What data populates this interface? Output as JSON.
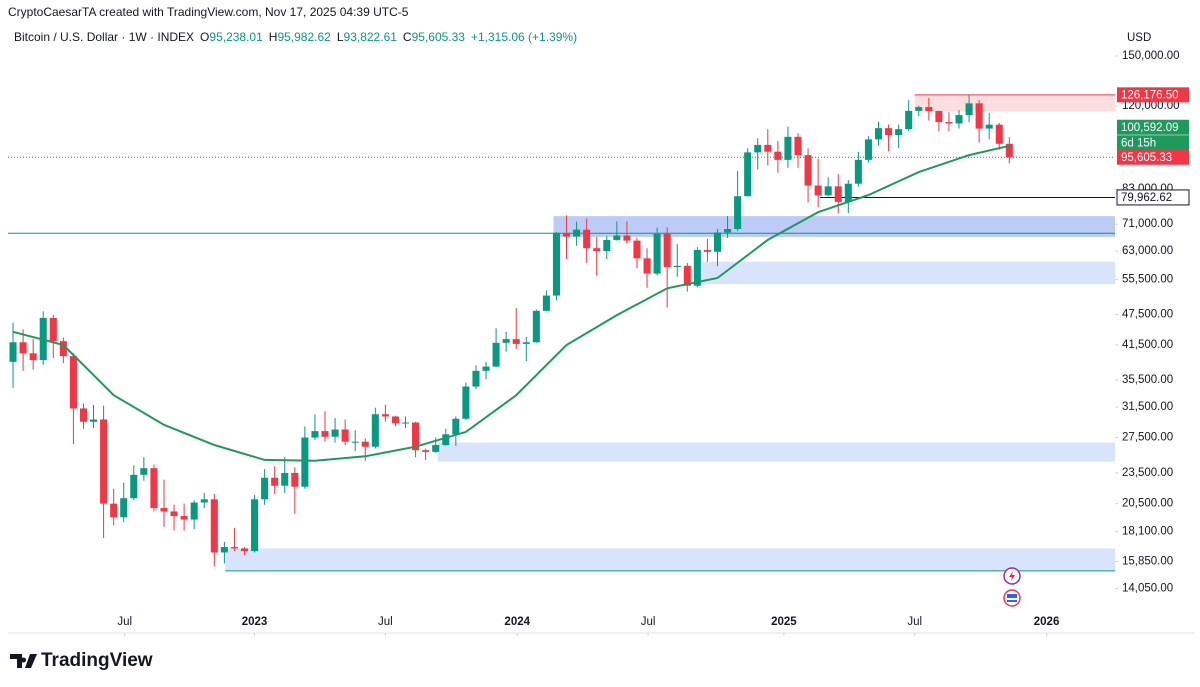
{
  "header": {
    "byline": "CryptoCaesarTA created with TradingView.com, Nov 17, 2025 04:39 UTC-5"
  },
  "chart_data": {
    "type": "candlestick",
    "symbol": "Bitcoin / U.S. Dollar · 1W · INDEX",
    "ohlc": [
      {
        "key": "O",
        "value": "95,238.01"
      },
      {
        "key": "H",
        "value": "95,982.62"
      },
      {
        "key": "L",
        "value": "93,822.61"
      },
      {
        "key": "C",
        "value": "95,605.33"
      }
    ],
    "change": "+1,315.06 (+1.39%)",
    "currency": "USD",
    "up_color": "#089981",
    "down_color": "#f23645",
    "candles": [
      [
        38500,
        45800,
        34300,
        42000
      ],
      [
        42000,
        44500,
        37000,
        40000
      ],
      [
        40000,
        42600,
        37200,
        38800
      ],
      [
        38800,
        48200,
        38000,
        46800
      ],
      [
        46800,
        47400,
        39200,
        42200
      ],
      [
        42200,
        42900,
        38300,
        39500
      ],
      [
        39500,
        40000,
        26700,
        31300
      ],
      [
        31300,
        32000,
        28600,
        29500
      ],
      [
        29500,
        31800,
        28700,
        29800
      ],
      [
        29800,
        31700,
        17600,
        20500
      ],
      [
        20500,
        21900,
        18600,
        19300
      ],
      [
        19300,
        22500,
        18900,
        21000
      ],
      [
        21000,
        24300,
        20800,
        23300
      ],
      [
        23300,
        25200,
        22700,
        24000
      ],
      [
        24000,
        24400,
        19800,
        20100
      ],
      [
        20100,
        22800,
        18500,
        19800
      ],
      [
        19800,
        20400,
        18200,
        19400
      ],
      [
        19400,
        20500,
        18200,
        19100
      ],
      [
        19100,
        20800,
        18300,
        20600
      ],
      [
        20600,
        21500,
        20100,
        20900
      ],
      [
        20900,
        21400,
        15500,
        16500
      ],
      [
        16500,
        17300,
        15700,
        16900
      ],
      [
        16900,
        18400,
        16600,
        16800
      ],
      [
        16800,
        16900,
        16300,
        16600
      ],
      [
        16600,
        21300,
        16500,
        20900
      ],
      [
        20900,
        23900,
        20400,
        23000
      ],
      [
        23000,
        24200,
        21400,
        22200
      ],
      [
        22200,
        25200,
        21500,
        23500
      ],
      [
        23500,
        24100,
        19600,
        22100
      ],
      [
        22100,
        28900,
        21900,
        27500
      ],
      [
        27500,
        30500,
        27200,
        28300
      ],
      [
        28300,
        30900,
        27000,
        27600
      ],
      [
        27600,
        30000,
        26900,
        28500
      ],
      [
        28500,
        29800,
        26600,
        27000
      ],
      [
        27000,
        28400,
        25900,
        27000
      ],
      [
        27000,
        27400,
        24800,
        26400
      ],
      [
        26400,
        31400,
        26200,
        30500
      ],
      [
        30500,
        31800,
        29500,
        30200
      ],
      [
        30200,
        30300,
        28900,
        29300
      ],
      [
        29300,
        30200,
        28700,
        29400
      ],
      [
        29400,
        29500,
        25200,
        26000
      ],
      [
        26000,
        26200,
        24900,
        25800
      ],
      [
        25800,
        27500,
        25700,
        26600
      ],
      [
        26600,
        28600,
        26500,
        27900
      ],
      [
        27900,
        30200,
        26500,
        29900
      ],
      [
        29900,
        35100,
        29700,
        34500
      ],
      [
        34500,
        37900,
        34100,
        37000
      ],
      [
        37000,
        38500,
        35600,
        37700
      ],
      [
        37700,
        44700,
        37600,
        41900
      ],
      [
        41900,
        44000,
        40300,
        42600
      ],
      [
        42600,
        48900,
        40800,
        41700
      ],
      [
        41700,
        43000,
        38600,
        42000
      ],
      [
        42000,
        48600,
        41900,
        48300
      ],
      [
        48300,
        52900,
        48200,
        51700
      ],
      [
        51700,
        68500,
        50600,
        68300
      ],
      [
        68300,
        73800,
        60800,
        67200
      ],
      [
        67200,
        71800,
        64500,
        69300
      ],
      [
        69300,
        72800,
        59800,
        63800
      ],
      [
        63800,
        67100,
        56500,
        63000
      ],
      [
        63000,
        67400,
        60800,
        66200
      ],
      [
        66200,
        71900,
        66000,
        67500
      ],
      [
        67500,
        71900,
        65100,
        66000
      ],
      [
        66000,
        66900,
        58400,
        61000
      ],
      [
        61000,
        63800,
        53500,
        57000
      ],
      [
        57000,
        69900,
        56500,
        68000
      ],
      [
        68000,
        70000,
        49000,
        58700
      ],
      [
        58700,
        65000,
        56200,
        59000
      ],
      [
        59000,
        59800,
        52600,
        54000
      ],
      [
        54000,
        64100,
        53700,
        63300
      ],
      [
        63300,
        66500,
        60100,
        62800
      ],
      [
        62800,
        69500,
        58900,
        68400
      ],
      [
        68400,
        73600,
        66800,
        69500
      ],
      [
        69500,
        89900,
        68800,
        80400
      ],
      [
        80400,
        99500,
        80300,
        97700
      ],
      [
        97700,
        104000,
        90500,
        101000
      ],
      [
        101000,
        108300,
        92200,
        98000
      ],
      [
        98000,
        102700,
        89300,
        94500
      ],
      [
        94500,
        109600,
        91200,
        104700
      ],
      [
        104700,
        106400,
        91200,
        96500
      ],
      [
        96500,
        99500,
        78200,
        84300
      ],
      [
        84300,
        95000,
        76600,
        80700
      ],
      [
        80700,
        87400,
        80500,
        84000
      ],
      [
        84000,
        88700,
        74500,
        78400
      ],
      [
        78400,
        86400,
        74600,
        85000
      ],
      [
        85000,
        97900,
        83900,
        94500
      ],
      [
        94500,
        105000,
        93400,
        103500
      ],
      [
        103500,
        112000,
        100700,
        108800
      ],
      [
        108800,
        110600,
        98200,
        105500
      ],
      [
        105500,
        110500,
        99600,
        108300
      ],
      [
        108300,
        123200,
        107400,
        117500
      ],
      [
        117500,
        120200,
        114700,
        119500
      ],
      [
        119500,
        124500,
        112600,
        117400
      ],
      [
        117400,
        117600,
        107300,
        111800
      ],
      [
        111800,
        116800,
        107300,
        111100
      ],
      [
        111100,
        117900,
        108600,
        115300
      ],
      [
        115300,
        126200,
        111700,
        121500
      ],
      [
        121500,
        123300,
        102000,
        108600
      ],
      [
        108600,
        116400,
        103600,
        110500
      ],
      [
        110500,
        111300,
        98900,
        101500
      ],
      [
        101500,
        104500,
        93000,
        95600
      ]
    ],
    "ma": {
      "color": "#1e9a5c",
      "x": [
        0.5,
        5.5,
        10.5,
        15.5,
        20.5,
        25.5,
        30.5,
        35.5,
        40.5,
        45.5,
        50.5,
        55.5,
        60.5,
        65.5,
        70.5,
        75.5,
        80.5,
        85.5,
        90.5,
        95.5,
        99.5
      ],
      "values": [
        44000,
        41500,
        33200,
        29100,
        26600,
        24900,
        24800,
        25300,
        26400,
        28200,
        33200,
        41500,
        47400,
        53400,
        55900,
        66200,
        74900,
        80800,
        89500,
        96500,
        100592.09
      ],
      "value_labels": [
        null,
        null,
        null,
        null,
        null,
        null,
        null,
        null,
        null,
        null,
        null,
        null,
        null,
        null,
        null,
        null,
        null,
        null,
        null,
        null,
        "100,592.09"
      ]
    },
    "countdown": "6d 15h",
    "last_price": {
      "value": 95605.33,
      "label": "95,605.33",
      "color": "#f23645"
    },
    "zones": [
      {
        "low": 67100,
        "high": 73600,
        "from": 54.2,
        "color": "#b6c6f5"
      },
      {
        "low": 54400,
        "high": 60100,
        "from": 68.3,
        "color": "#d3e1fc"
      },
      {
        "low": 24700,
        "high": 26900,
        "from": 42.7,
        "color": "#d3e1fc"
      },
      {
        "low": 15200,
        "high": 16800,
        "from": 21.6,
        "color": "#d3e1fc"
      },
      {
        "low": 117200,
        "high": 126176.5,
        "from": 90.1,
        "color": "#fcdadc"
      }
    ],
    "price_lines": [
      {
        "value": 126176.5,
        "label": "126,176.50",
        "color": "#f23645",
        "from": 90.1
      },
      {
        "value": 79962.62,
        "label": "79,962.62",
        "color": "#131722",
        "from": 80.7,
        "outline": true
      },
      {
        "value": 68200,
        "color": "#089981",
        "from": 0
      },
      {
        "value": 15200,
        "color": "#089981",
        "from": 21.6
      }
    ],
    "xlim": [
      0,
      110
    ],
    "xticks": [
      {
        "value": 11.6,
        "label": "Jul"
      },
      {
        "value": 24.5,
        "label": "2023"
      },
      {
        "value": 37.5,
        "label": "Jul"
      },
      {
        "value": 50.6,
        "label": "2024"
      },
      {
        "value": 63.6,
        "label": "Jul"
      },
      {
        "value": 77.1,
        "label": "2025"
      },
      {
        "value": 90.1,
        "label": "Jul"
      },
      {
        "value": 103.2,
        "label": "2026"
      }
    ],
    "ylim": [
      11690,
      154000
    ],
    "log_y": true,
    "grid": false,
    "yticks": [
      {
        "value": 150000,
        "label": "150,000.00"
      },
      {
        "value": 120000,
        "label": "120,000.00"
      },
      {
        "value": 83000,
        "label": "83,000.00"
      },
      {
        "value": 71000,
        "label": "71,000.00"
      },
      {
        "value": 63000,
        "label": "63,000.00"
      },
      {
        "value": 55500,
        "label": "55,500.00"
      },
      {
        "value": 47500,
        "label": "47,500.00"
      },
      {
        "value": 41500,
        "label": "41,500.00"
      },
      {
        "value": 35500,
        "label": "35,500.00"
      },
      {
        "value": 31500,
        "label": "31,500.00"
      },
      {
        "value": 27500,
        "label": "27,500.00"
      },
      {
        "value": 23500,
        "label": "23,500.00"
      },
      {
        "value": 20500,
        "label": "20,500.00"
      },
      {
        "value": 18100,
        "label": "18,100.00"
      },
      {
        "value": 15850,
        "label": "15,850.00"
      },
      {
        "value": 14050,
        "label": "14,050.00"
      }
    ]
  },
  "footer": {
    "brand": "TradingView"
  }
}
